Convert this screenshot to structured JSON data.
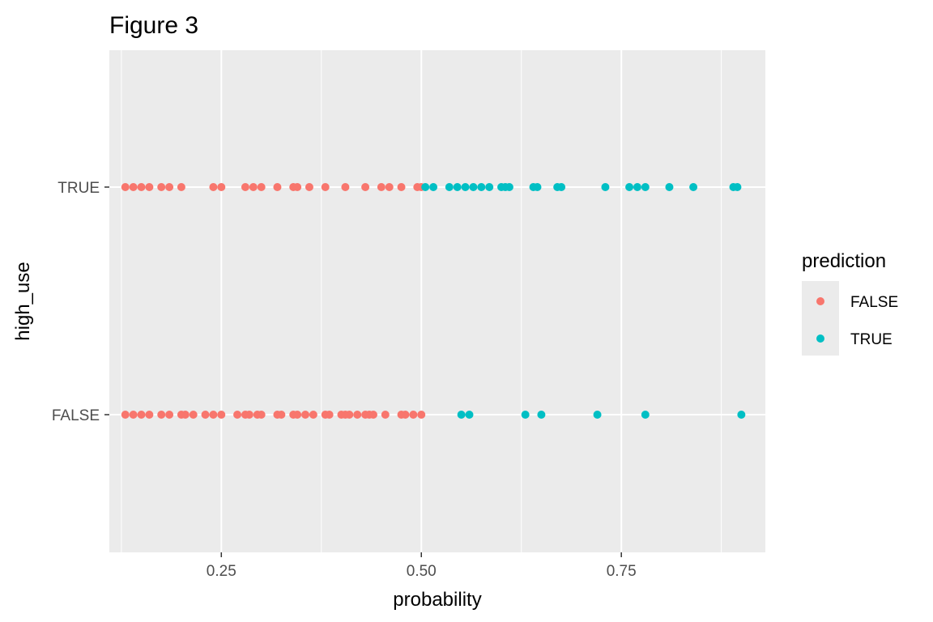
{
  "chart_data": {
    "type": "scatter",
    "title": "Figure 3",
    "xlabel": "probability",
    "ylabel": "high_use",
    "xlim": [
      0.11,
      0.93
    ],
    "x_ticks": [
      {
        "value": 0.25,
        "label": "0.25"
      },
      {
        "value": 0.5,
        "label": "0.50"
      },
      {
        "value": 0.75,
        "label": "0.75"
      }
    ],
    "x_minor_ticks": [
      0.125,
      0.375,
      0.625,
      0.875
    ],
    "y_categories": [
      "FALSE",
      "TRUE"
    ],
    "y_tick_labels": [
      "FALSE",
      "TRUE"
    ],
    "grid": true,
    "legend": {
      "title": "prediction",
      "position": "right",
      "items": [
        {
          "label": "FALSE",
          "color": "#F8766D"
        },
        {
          "label": "TRUE",
          "color": "#00BFC4"
        }
      ]
    },
    "series": [
      {
        "name": "FALSE",
        "color": "#F8766D",
        "points": [
          {
            "x": 0.13,
            "y": "TRUE"
          },
          {
            "x": 0.14,
            "y": "TRUE"
          },
          {
            "x": 0.15,
            "y": "TRUE"
          },
          {
            "x": 0.16,
            "y": "TRUE"
          },
          {
            "x": 0.175,
            "y": "TRUE"
          },
          {
            "x": 0.185,
            "y": "TRUE"
          },
          {
            "x": 0.2,
            "y": "TRUE"
          },
          {
            "x": 0.24,
            "y": "TRUE"
          },
          {
            "x": 0.25,
            "y": "TRUE"
          },
          {
            "x": 0.28,
            "y": "TRUE"
          },
          {
            "x": 0.29,
            "y": "TRUE"
          },
          {
            "x": 0.3,
            "y": "TRUE"
          },
          {
            "x": 0.32,
            "y": "TRUE"
          },
          {
            "x": 0.34,
            "y": "TRUE"
          },
          {
            "x": 0.345,
            "y": "TRUE"
          },
          {
            "x": 0.36,
            "y": "TRUE"
          },
          {
            "x": 0.38,
            "y": "TRUE"
          },
          {
            "x": 0.405,
            "y": "TRUE"
          },
          {
            "x": 0.43,
            "y": "TRUE"
          },
          {
            "x": 0.45,
            "y": "TRUE"
          },
          {
            "x": 0.46,
            "y": "TRUE"
          },
          {
            "x": 0.475,
            "y": "TRUE"
          },
          {
            "x": 0.495,
            "y": "TRUE"
          },
          {
            "x": 0.5,
            "y": "TRUE"
          },
          {
            "x": 0.13,
            "y": "FALSE"
          },
          {
            "x": 0.14,
            "y": "FALSE"
          },
          {
            "x": 0.15,
            "y": "FALSE"
          },
          {
            "x": 0.16,
            "y": "FALSE"
          },
          {
            "x": 0.175,
            "y": "FALSE"
          },
          {
            "x": 0.185,
            "y": "FALSE"
          },
          {
            "x": 0.2,
            "y": "FALSE"
          },
          {
            "x": 0.205,
            "y": "FALSE"
          },
          {
            "x": 0.215,
            "y": "FALSE"
          },
          {
            "x": 0.23,
            "y": "FALSE"
          },
          {
            "x": 0.24,
            "y": "FALSE"
          },
          {
            "x": 0.25,
            "y": "FALSE"
          },
          {
            "x": 0.27,
            "y": "FALSE"
          },
          {
            "x": 0.28,
            "y": "FALSE"
          },
          {
            "x": 0.285,
            "y": "FALSE"
          },
          {
            "x": 0.295,
            "y": "FALSE"
          },
          {
            "x": 0.3,
            "y": "FALSE"
          },
          {
            "x": 0.32,
            "y": "FALSE"
          },
          {
            "x": 0.325,
            "y": "FALSE"
          },
          {
            "x": 0.34,
            "y": "FALSE"
          },
          {
            "x": 0.345,
            "y": "FALSE"
          },
          {
            "x": 0.355,
            "y": "FALSE"
          },
          {
            "x": 0.365,
            "y": "FALSE"
          },
          {
            "x": 0.38,
            "y": "FALSE"
          },
          {
            "x": 0.385,
            "y": "FALSE"
          },
          {
            "x": 0.4,
            "y": "FALSE"
          },
          {
            "x": 0.405,
            "y": "FALSE"
          },
          {
            "x": 0.41,
            "y": "FALSE"
          },
          {
            "x": 0.42,
            "y": "FALSE"
          },
          {
            "x": 0.43,
            "y": "FALSE"
          },
          {
            "x": 0.435,
            "y": "FALSE"
          },
          {
            "x": 0.44,
            "y": "FALSE"
          },
          {
            "x": 0.455,
            "y": "FALSE"
          },
          {
            "x": 0.475,
            "y": "FALSE"
          },
          {
            "x": 0.48,
            "y": "FALSE"
          },
          {
            "x": 0.49,
            "y": "FALSE"
          },
          {
            "x": 0.5,
            "y": "FALSE"
          }
        ]
      },
      {
        "name": "TRUE",
        "color": "#00BFC4",
        "points": [
          {
            "x": 0.505,
            "y": "TRUE"
          },
          {
            "x": 0.515,
            "y": "TRUE"
          },
          {
            "x": 0.535,
            "y": "TRUE"
          },
          {
            "x": 0.545,
            "y": "TRUE"
          },
          {
            "x": 0.555,
            "y": "TRUE"
          },
          {
            "x": 0.565,
            "y": "TRUE"
          },
          {
            "x": 0.575,
            "y": "TRUE"
          },
          {
            "x": 0.585,
            "y": "TRUE"
          },
          {
            "x": 0.6,
            "y": "TRUE"
          },
          {
            "x": 0.605,
            "y": "TRUE"
          },
          {
            "x": 0.61,
            "y": "TRUE"
          },
          {
            "x": 0.64,
            "y": "TRUE"
          },
          {
            "x": 0.645,
            "y": "TRUE"
          },
          {
            "x": 0.67,
            "y": "TRUE"
          },
          {
            "x": 0.675,
            "y": "TRUE"
          },
          {
            "x": 0.73,
            "y": "TRUE"
          },
          {
            "x": 0.76,
            "y": "TRUE"
          },
          {
            "x": 0.77,
            "y": "TRUE"
          },
          {
            "x": 0.78,
            "y": "TRUE"
          },
          {
            "x": 0.81,
            "y": "TRUE"
          },
          {
            "x": 0.84,
            "y": "TRUE"
          },
          {
            "x": 0.89,
            "y": "TRUE"
          },
          {
            "x": 0.895,
            "y": "TRUE"
          },
          {
            "x": 0.55,
            "y": "FALSE"
          },
          {
            "x": 0.56,
            "y": "FALSE"
          },
          {
            "x": 0.63,
            "y": "FALSE"
          },
          {
            "x": 0.65,
            "y": "FALSE"
          },
          {
            "x": 0.72,
            "y": "FALSE"
          },
          {
            "x": 0.78,
            "y": "FALSE"
          },
          {
            "x": 0.9,
            "y": "FALSE"
          }
        ]
      }
    ]
  }
}
